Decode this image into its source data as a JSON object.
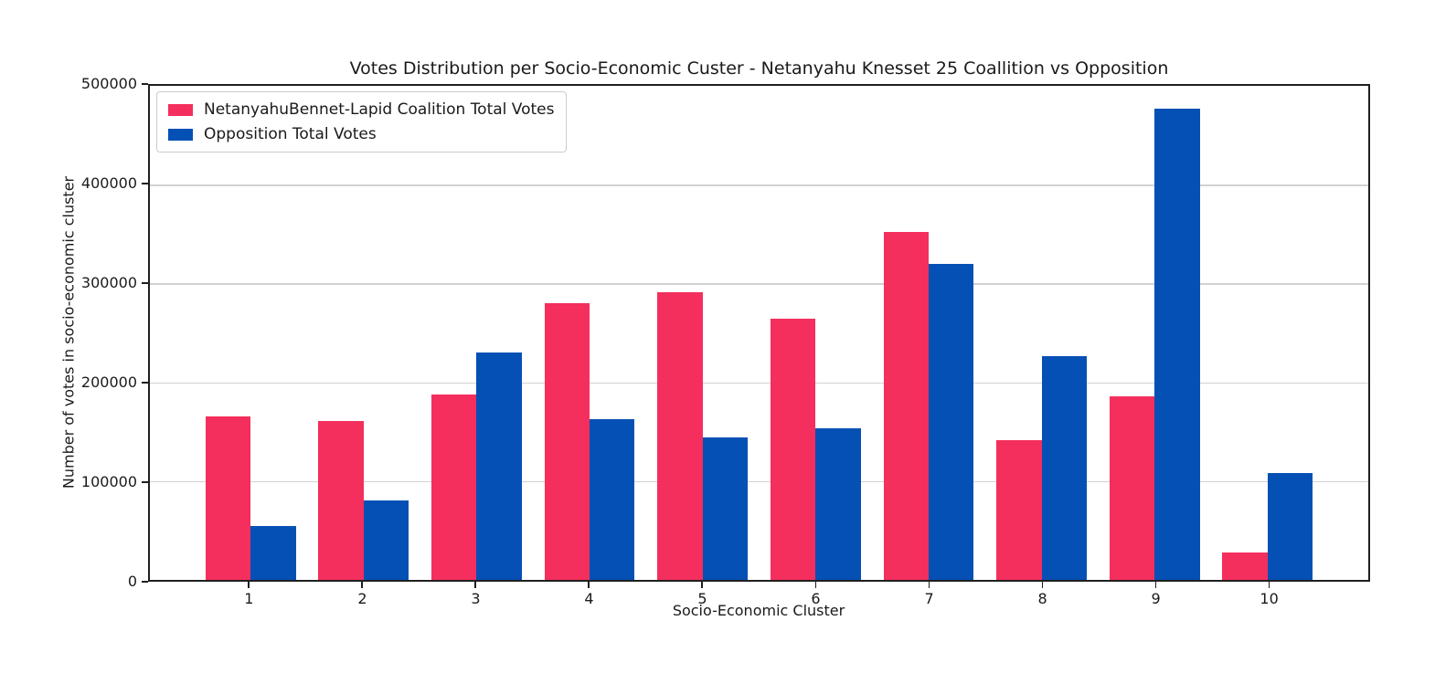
{
  "chart_data": {
    "type": "bar",
    "title": "Votes Distribution per Socio-Economic Custer - Netanyahu Knesset 25 Coallition vs Opposition",
    "xlabel": "Socio-Economic Cluster",
    "ylabel": "Number of votes in socio-economic cluster",
    "categories": [
      1,
      2,
      3,
      4,
      5,
      6,
      7,
      8,
      9,
      10
    ],
    "series": [
      {
        "name": "NetanyahuBennet-Lapid Coalition Total Votes",
        "color": "#f42f5d",
        "values": [
          165000,
          161000,
          188000,
          280000,
          291000,
          264000,
          352000,
          141000,
          186000,
          28000
        ]
      },
      {
        "name": "Opposition Total Votes",
        "color": "#0550b4",
        "values": [
          55000,
          80000,
          230000,
          163000,
          144000,
          153000,
          320000,
          226000,
          477000,
          108000
        ]
      }
    ],
    "ylim": [
      0,
      500000
    ],
    "yticks": [
      0,
      100000,
      200000,
      300000,
      400000,
      500000
    ],
    "grid": "horizontal",
    "legend_position": "upper-left",
    "colors": {
      "coalition": "#f42f5d",
      "opposition": "#0550b4",
      "gridline": "#d2d2d2",
      "spine": "#1f1f1f"
    }
  }
}
